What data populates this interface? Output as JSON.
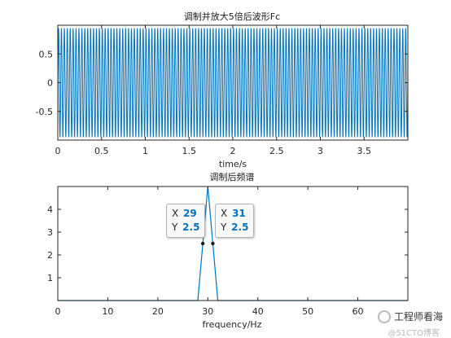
{
  "chart_data": [
    {
      "type": "line",
      "title": "调制并放大5倍后波形Fc",
      "xlabel": "time/s",
      "ylabel": "",
      "xlim": [
        0,
        4
      ],
      "ylim": [
        -1,
        1
      ],
      "xticks": [
        "0",
        "0.5",
        "1",
        "1.5",
        "2",
        "2.5",
        "3",
        "3.5"
      ],
      "yticks": [
        "-0.5",
        "0",
        "0.5"
      ],
      "series": [
        {
          "color": "#0072bd",
          "signal": "carrier oscillation",
          "amplitude": 0.95,
          "cycles_per_unit": 30
        }
      ]
    },
    {
      "type": "line",
      "title": "调制后频谱",
      "xlabel": "frequency/Hz",
      "ylabel": "",
      "xlim": [
        0,
        70
      ],
      "ylim": [
        0,
        5
      ],
      "xticks": [
        "0",
        "10",
        "20",
        "30",
        "40",
        "50",
        "60"
      ],
      "yticks": [
        "1",
        "2",
        "3",
        "4"
      ],
      "series": [
        {
          "color": "#0072bd",
          "x": [
            0,
            28,
            29,
            30,
            31,
            32,
            70
          ],
          "y": [
            0,
            0,
            2.5,
            5,
            2.5,
            0,
            0
          ]
        }
      ],
      "datatips": [
        {
          "x_label": "X",
          "x": "29",
          "y_label": "Y",
          "y": "2.5"
        },
        {
          "x_label": "X",
          "x": "31",
          "y_label": "Y",
          "y": "2.5"
        }
      ]
    }
  ],
  "watermark": {
    "text": "工程师看海",
    "subtext": "@51CTO博客"
  }
}
